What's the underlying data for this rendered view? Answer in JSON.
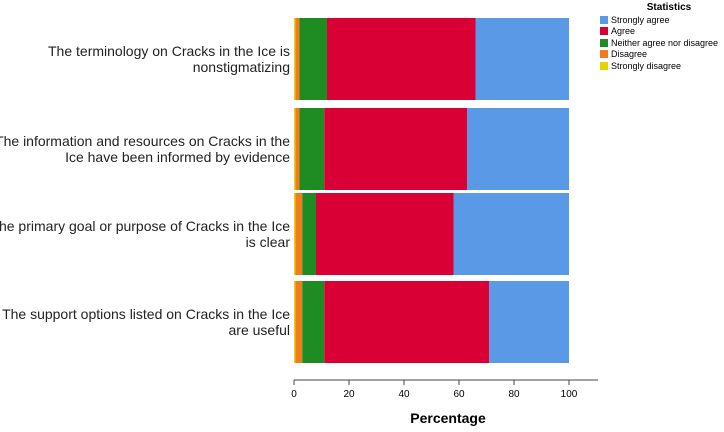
{
  "chart_data": {
    "type": "bar",
    "orientation": "horizontal",
    "stacked": true,
    "categories": [
      "The terminology on Cracks in the Ice is nonstigmatizing",
      "The information and resources on Cracks in the Ice have been informed by evidence",
      "The primary goal or purpose of Cracks in the Ice is clear",
      "The support options listed on Cracks in the Ice are useful"
    ],
    "category_lines": [
      [
        "The terminology on Cracks in the Ice is",
        "nonstigmatizing"
      ],
      [
        "The information and resources on Cracks in the",
        "Ice have been informed by evidence"
      ],
      [
        "The primary goal or purpose of Cracks in the Ice",
        "is clear"
      ],
      [
        "The support options listed on Cracks in the Ice",
        "are useful"
      ]
    ],
    "series": [
      {
        "name": "Strongly disagree",
        "color": "#e6d400",
        "values": [
          0.5,
          0.5,
          0.5,
          0.5
        ]
      },
      {
        "name": "Disagree",
        "color": "#f07c1e",
        "values": [
          1.5,
          1.5,
          2.5,
          2.5
        ]
      },
      {
        "name": "Neither agree nor disagree",
        "color": "#1e8c23",
        "values": [
          10,
          9,
          5,
          8
        ]
      },
      {
        "name": "Agree",
        "color": "#d90036",
        "values": [
          54,
          52,
          50,
          60
        ]
      },
      {
        "name": "Strongly agree",
        "color": "#5a99e6",
        "values": [
          34,
          37,
          42,
          29
        ]
      }
    ],
    "legend_order": [
      "Strongly agree",
      "Agree",
      "Neither agree nor disagree",
      "Disagree",
      "Strongly disagree"
    ],
    "legend_title": "Statistics",
    "legend_position": "top-right",
    "xlabel": "Percentage",
    "xlim": [
      0,
      100
    ],
    "xticks": [
      0,
      20,
      40,
      60,
      80,
      100
    ],
    "grid": false
  }
}
